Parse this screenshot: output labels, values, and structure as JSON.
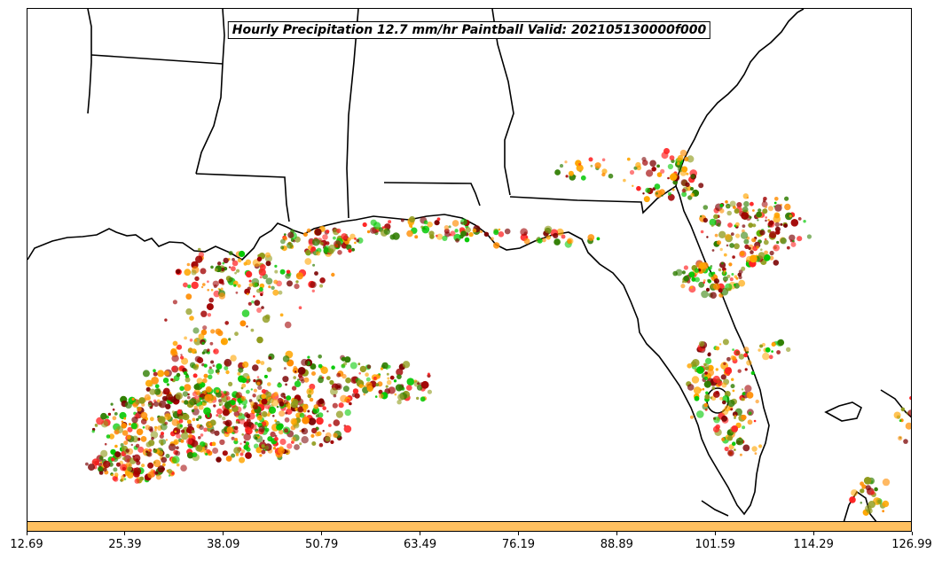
{
  "title": "Hourly Precipitation 12.7 mm/hr Paintball Valid: 202105130000f000",
  "colorbar": {
    "color": "#ffc060",
    "ticks": [
      "12.69",
      "25.39",
      "38.09",
      "50.79",
      "63.49",
      "76.19",
      "88.89",
      "101.59",
      "114.29",
      "126.99"
    ]
  },
  "paintball_colors": [
    "#00c800",
    "#2e7d00",
    "#8f9a1a",
    "#ff8c00",
    "#ffa500",
    "#ff2020",
    "#a00000",
    "#7a0000"
  ],
  "map": {
    "region": "Gulf Coast / Florida",
    "land_color": "#ffffff",
    "ocean_color": "#ffffff",
    "border_color": "#000000"
  }
}
